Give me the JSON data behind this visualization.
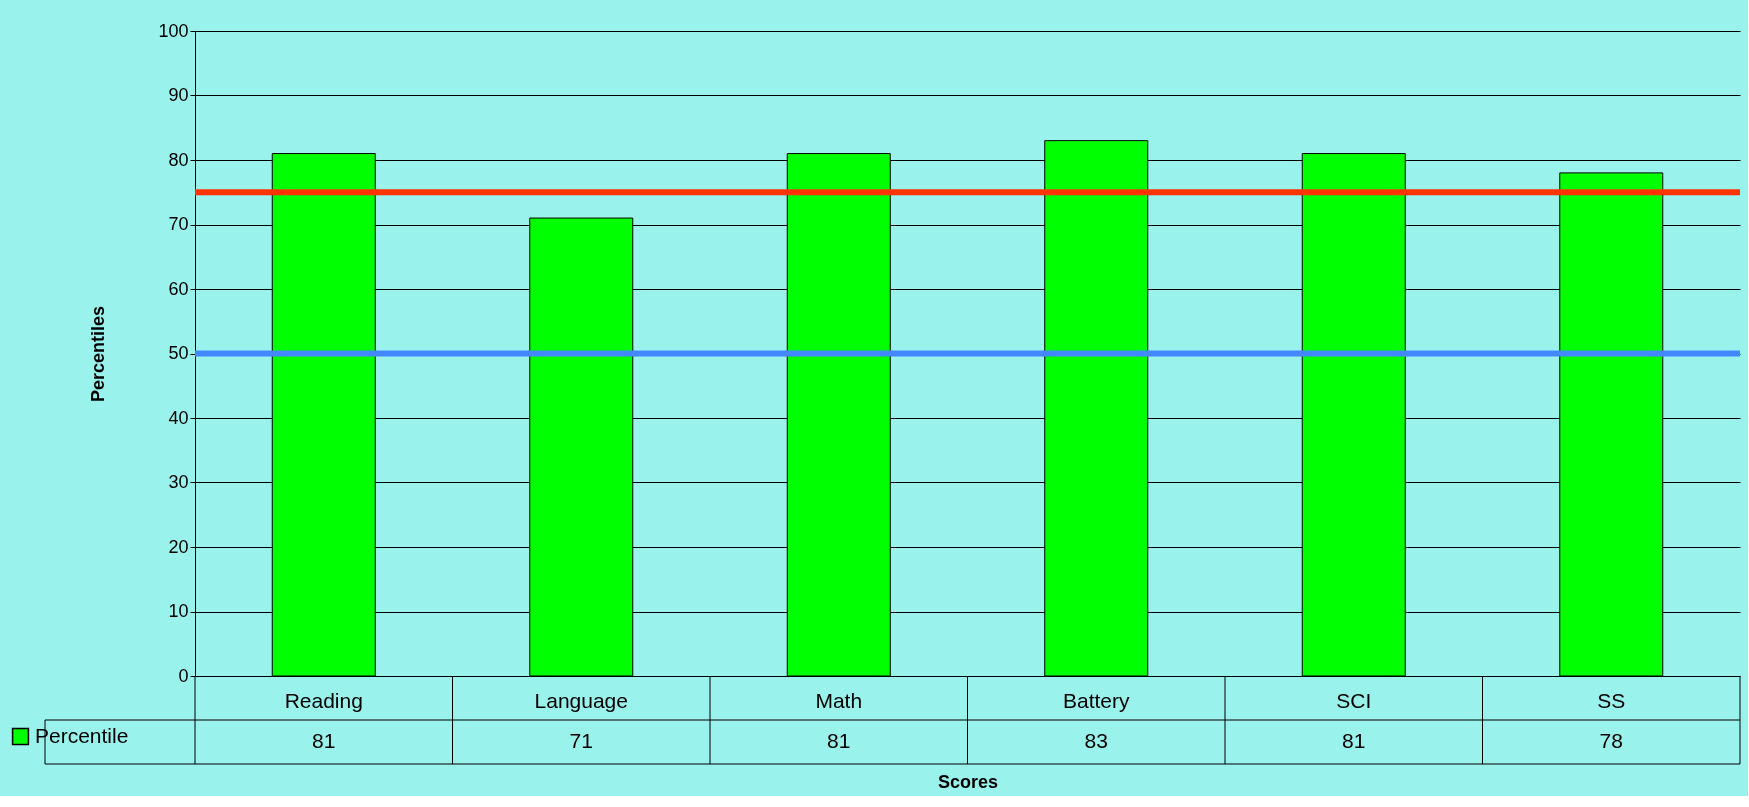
{
  "chart_data": {
    "type": "bar",
    "xlabel": "Scores",
    "ylabel": "Percentiles",
    "categories": [
      "Reading",
      "Language",
      "Math",
      "Battery",
      "SCI",
      "SS"
    ],
    "series": [
      {
        "name": "Percentile",
        "color": "#00ff00",
        "values": [
          81,
          71,
          81,
          83,
          81,
          78
        ]
      }
    ],
    "ylim": [
      0,
      100
    ],
    "yticks": [
      0,
      10,
      20,
      30,
      40,
      50,
      60,
      70,
      80,
      90,
      100
    ],
    "grid": "y",
    "data_labels": true,
    "legend": "bottom left",
    "ref_lines": [
      {
        "axis": "y",
        "value": 75,
        "color": "#ff3300"
      },
      {
        "axis": "y",
        "value": 50,
        "color": "#4488ff"
      }
    ]
  }
}
